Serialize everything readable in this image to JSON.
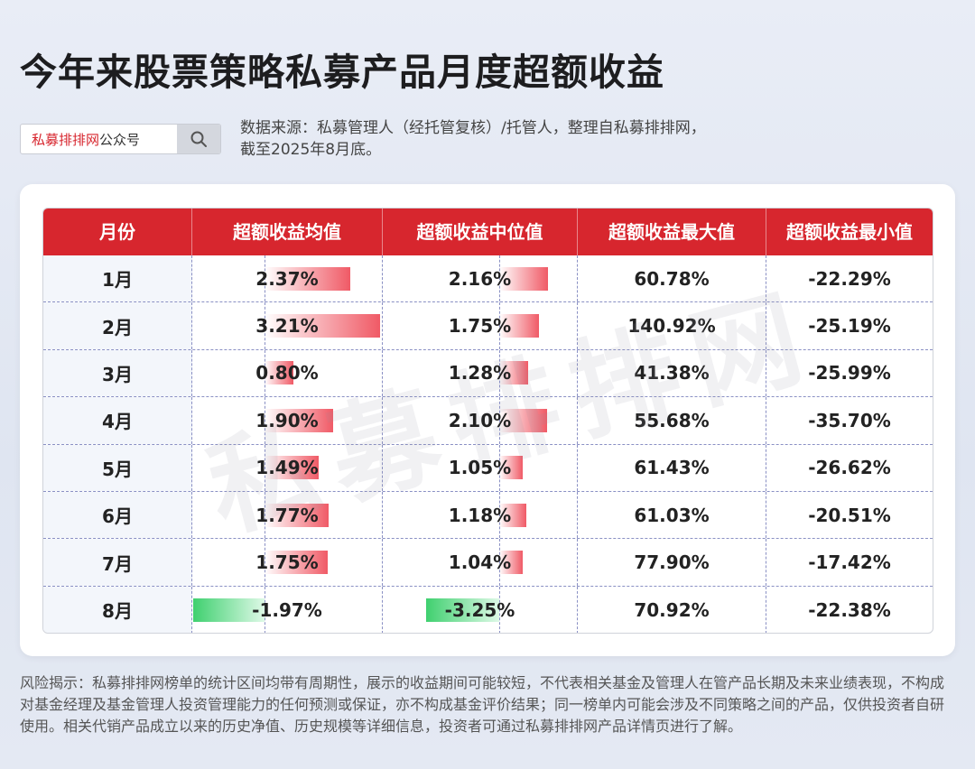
{
  "title": "今年来股票策略私募产品月度超额收益",
  "search": {
    "brand": "私募排排网",
    "suffix": "公众号"
  },
  "source_line1": "数据来源：私募管理人（经托管复核）/托管人，整理自私募排排网，",
  "source_line2": "截至2025年8月底。",
  "watermark": "私募排排网",
  "disclaimer": "风险揭示：私募排排网榜单的统计区间均带有周期性，展示的收益期间可能较短，不代表相关基金及管理人在管产品长期及未来业绩表现，不构成对基金经理及基金管理人投资管理能力的任何预测或保证，亦不构成基金评价结果；同一榜单内可能会涉及不同策略之间的产品，仅供投资者自研使用。相关代销产品成立以来的历史净值、历史规模等详细信息，投资者可通过私募排排网产品详情页进行了解。",
  "colors": {
    "accent": "#d7262e",
    "positive_bar": "#f05a66",
    "negative_bar": "#3fd06f"
  },
  "chart_data": {
    "type": "table",
    "columns": [
      "月份",
      "超额收益均值",
      "超额收益中位值",
      "超额收益最大值",
      "超额收益最小值"
    ],
    "rows": [
      {
        "month": "1月",
        "mean": 2.37,
        "median": 2.16,
        "max": 60.78,
        "min": -22.29
      },
      {
        "month": "2月",
        "mean": 3.21,
        "median": 1.75,
        "max": 140.92,
        "min": -25.19
      },
      {
        "month": "3月",
        "mean": 0.8,
        "median": 1.28,
        "max": 41.38,
        "min": -25.99
      },
      {
        "month": "4月",
        "mean": 1.9,
        "median": 2.1,
        "max": 55.68,
        "min": -35.7
      },
      {
        "month": "5月",
        "mean": 1.49,
        "median": 1.05,
        "max": 61.43,
        "min": -26.62
      },
      {
        "month": "6月",
        "mean": 1.77,
        "median": 1.18,
        "max": 61.03,
        "min": -20.51
      },
      {
        "month": "7月",
        "mean": 1.75,
        "median": 1.04,
        "max": 77.9,
        "min": -17.42
      },
      {
        "month": "8月",
        "mean": -1.97,
        "median": -3.25,
        "max": 70.92,
        "min": -22.38
      }
    ],
    "unit": "%"
  }
}
